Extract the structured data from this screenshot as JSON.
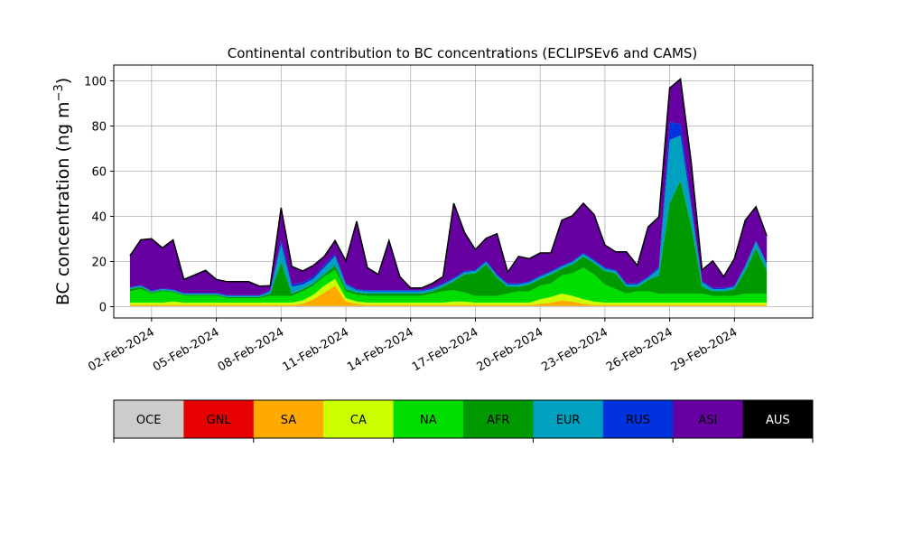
{
  "chart_data": {
    "type": "area",
    "stacked": true,
    "title": "Continental contribution to BC concentrations (ECLIPSEv6 and CAMS)",
    "xlabel": "",
    "ylabel": "BC concentration (ng m⁻³)",
    "ylim": [
      -5,
      107
    ],
    "yticks": [
      0,
      20,
      40,
      60,
      80,
      100
    ],
    "xlim": [
      "2024-01-31T06:00",
      "2024-03-03T15:00"
    ],
    "xticks": [
      "2024-02-02",
      "2024-02-05",
      "2024-02-08",
      "2024-02-11",
      "2024-02-14",
      "2024-02-17",
      "2024-02-20",
      "2024-02-23",
      "2024-02-26",
      "2024-02-29"
    ],
    "xtick_labels": [
      "02-Feb-2024",
      "05-Feb-2024",
      "08-Feb-2024",
      "11-Feb-2024",
      "14-Feb-2024",
      "17-Feb-2024",
      "20-Feb-2024",
      "23-Feb-2024",
      "26-Feb-2024",
      "29-Feb-2024"
    ],
    "grid": true,
    "legend_position": "below",
    "x": [
      "2024-02-01T00:00",
      "2024-02-01T12:00",
      "2024-02-02T00:00",
      "2024-02-02T12:00",
      "2024-02-03T00:00",
      "2024-02-03T12:00",
      "2024-02-04T00:00",
      "2024-02-04T12:00",
      "2024-02-05T00:00",
      "2024-02-05T12:00",
      "2024-02-06T00:00",
      "2024-02-06T12:00",
      "2024-02-07T00:00",
      "2024-02-07T12:00",
      "2024-02-08T00:00",
      "2024-02-08T12:00",
      "2024-02-09T00:00",
      "2024-02-09T12:00",
      "2024-02-10T00:00",
      "2024-02-10T12:00",
      "2024-02-11T00:00",
      "2024-02-11T12:00",
      "2024-02-12T00:00",
      "2024-02-12T12:00",
      "2024-02-13T00:00",
      "2024-02-13T12:00",
      "2024-02-14T00:00",
      "2024-02-14T12:00",
      "2024-02-15T00:00",
      "2024-02-15T12:00",
      "2024-02-16T00:00",
      "2024-02-16T12:00",
      "2024-02-17T00:00",
      "2024-02-17T12:00",
      "2024-02-18T00:00",
      "2024-02-18T12:00",
      "2024-02-19T00:00",
      "2024-02-19T12:00",
      "2024-02-20T00:00",
      "2024-02-20T12:00",
      "2024-02-21T00:00",
      "2024-02-21T12:00",
      "2024-02-22T00:00",
      "2024-02-22T12:00",
      "2024-02-23T00:00",
      "2024-02-23T12:00",
      "2024-02-24T00:00",
      "2024-02-24T12:00",
      "2024-02-25T00:00",
      "2024-02-25T12:00",
      "2024-02-26T00:00",
      "2024-02-26T12:00",
      "2024-02-27T00:00",
      "2024-02-27T12:00",
      "2024-02-28T00:00",
      "2024-02-28T12:00",
      "2024-02-29T00:00",
      "2024-02-29T12:00",
      "2024-03-01T00:00",
      "2024-03-01T12:00"
    ],
    "series": [
      {
        "name": "OCE",
        "color": "#cccccc",
        "values": [
          0.3,
          0.3,
          0.3,
          0.3,
          0.3,
          0.3,
          0.3,
          0.3,
          0.3,
          0.3,
          0.3,
          0.3,
          0.3,
          0.3,
          0.3,
          0.3,
          0.3,
          0.3,
          0.3,
          0.3,
          0.3,
          0.3,
          0.3,
          0.3,
          0.3,
          0.3,
          0.3,
          0.3,
          0.3,
          0.3,
          0.3,
          0.3,
          0.3,
          0.3,
          0.3,
          0.3,
          0.3,
          0.3,
          0.3,
          0.3,
          0.3,
          0.3,
          0.3,
          0.3,
          0.3,
          0.3,
          0.3,
          0.3,
          0.3,
          0.3,
          0.3,
          0.3,
          0.3,
          0.3,
          0.3,
          0.3,
          0.3,
          0.3,
          0.3,
          0.3
        ]
      },
      {
        "name": "GNL",
        "color": "#e60000",
        "values": [
          0,
          0,
          0,
          0,
          0,
          0,
          0,
          0,
          0,
          0,
          0,
          0,
          0,
          0,
          0,
          0,
          0,
          0,
          0,
          0,
          0,
          0,
          0,
          0,
          0,
          0,
          0,
          0,
          0,
          0,
          0,
          0,
          0,
          0,
          0,
          0,
          0,
          0,
          0,
          0,
          0,
          0,
          0,
          0,
          0,
          0,
          0,
          0,
          0,
          0,
          0,
          0,
          0,
          0,
          0,
          0,
          0,
          0,
          0,
          0
        ]
      },
      {
        "name": "SA",
        "color": "#ffaa00",
        "values": [
          0.5,
          0.5,
          0.5,
          0.5,
          0.5,
          0.5,
          0.5,
          0.5,
          0.5,
          0.5,
          0.5,
          0.5,
          0.5,
          0.5,
          0.5,
          0.5,
          1,
          3,
          6,
          9,
          2,
          1,
          0.5,
          0.5,
          0.5,
          0.5,
          0.5,
          0.5,
          0.5,
          0.5,
          0.5,
          0.5,
          0.5,
          0.5,
          0.5,
          0.5,
          0.5,
          0.5,
          1,
          1.5,
          2.5,
          2,
          1,
          0.5,
          0.5,
          0.5,
          0.5,
          0.5,
          0.5,
          0.5,
          0.5,
          0.5,
          0.5,
          0.5,
          0.5,
          0.5,
          0.5,
          0.5,
          0.5,
          0.5
        ]
      },
      {
        "name": "CA",
        "color": "#ccff00",
        "values": [
          1,
          1,
          1,
          1,
          1.5,
          1,
          1,
          1,
          1,
          1,
          1,
          1,
          1,
          1,
          1,
          1,
          1.5,
          2,
          3,
          3,
          1.5,
          1,
          1,
          1,
          1,
          1,
          1,
          1,
          1,
          1,
          1.5,
          1.5,
          1,
          1,
          1,
          1,
          1,
          1,
          2,
          2.5,
          3,
          2.5,
          2,
          1.5,
          1,
          1,
          1,
          1,
          1,
          1,
          1,
          1,
          1,
          1,
          1,
          1,
          1,
          1,
          1,
          1
        ]
      },
      {
        "name": "NA",
        "color": "#00dd00",
        "values": [
          5,
          6,
          4,
          5,
          4,
          3,
          3,
          3,
          3,
          2,
          2,
          2,
          2,
          3,
          3,
          3,
          4,
          4,
          4,
          4,
          3,
          3,
          3,
          3,
          3,
          3,
          3,
          3,
          4,
          5,
          5,
          4,
          3,
          3,
          3,
          4,
          5,
          5,
          6,
          6,
          8,
          10,
          14,
          12,
          8,
          6,
          4,
          5,
          5,
          4,
          4,
          4,
          4,
          4,
          3,
          3,
          3,
          4,
          4,
          4
        ]
      },
      {
        "name": "AFR",
        "color": "#009900",
        "values": [
          1,
          1,
          0.5,
          0.5,
          0.5,
          0.5,
          0.5,
          0.5,
          0.5,
          0.5,
          0.5,
          0.5,
          0.5,
          1,
          15,
          1,
          1,
          1,
          1,
          2,
          1,
          1,
          1,
          1,
          1,
          1,
          1,
          1,
          1,
          2,
          4,
          8,
          10,
          14,
          8,
          3,
          2,
          3,
          3,
          4,
          3,
          4,
          5,
          5,
          6,
          7,
          3,
          2,
          5,
          8,
          40,
          50,
          30,
          3,
          2,
          2,
          3,
          10,
          20,
          10
        ]
      },
      {
        "name": "EUR",
        "color": "#00a0c0",
        "values": [
          0.5,
          0.5,
          0.5,
          0.5,
          0.5,
          0.5,
          0.5,
          0.5,
          0.5,
          0.5,
          0.5,
          0.5,
          0.5,
          1,
          8,
          3,
          2,
          2,
          3,
          4,
          2,
          1,
          1,
          1,
          1,
          1,
          1,
          1,
          1,
          1,
          1,
          1,
          1,
          1,
          1,
          1,
          1,
          1,
          1,
          1,
          1,
          1,
          1,
          1,
          1,
          1,
          1,
          1,
          1,
          3,
          28,
          20,
          8,
          2,
          1,
          1,
          1,
          2,
          3,
          3
        ]
      },
      {
        "name": "RUS",
        "color": "#0033dd",
        "values": [
          0.3,
          0.3,
          0.3,
          0.3,
          0.3,
          0.3,
          0.3,
          0.3,
          0.3,
          0.3,
          0.3,
          0.3,
          0.3,
          0.5,
          2,
          1,
          1,
          1,
          1,
          1,
          0.5,
          0.5,
          0.5,
          0.5,
          0.5,
          0.5,
          0.5,
          0.5,
          0.5,
          0.5,
          0.5,
          0.5,
          0.5,
          0.5,
          0.5,
          0.5,
          0.5,
          0.5,
          0.5,
          0.5,
          0.5,
          0.5,
          0.5,
          0.5,
          0.5,
          0.5,
          0.5,
          0.5,
          0.5,
          1,
          8,
          5,
          2,
          0.5,
          0.5,
          0.5,
          0.5,
          0.5,
          0.5,
          0.5
        ]
      },
      {
        "name": "ASI",
        "color": "#6600a0",
        "values": [
          14,
          20,
          23,
          18,
          22,
          6,
          8,
          10,
          6,
          6,
          6,
          6,
          4,
          2,
          14,
          8,
          5,
          5,
          4,
          6,
          10,
          30,
          10,
          7,
          22,
          6,
          1,
          1,
          2,
          3,
          33,
          17,
          9,
          10,
          18,
          5,
          12,
          10,
          10,
          8,
          20,
          20,
          22,
          20,
          10,
          8,
          14,
          8,
          22,
          22,
          15,
          20,
          18,
          5,
          12,
          5,
          12,
          20,
          15,
          12
        ]
      },
      {
        "name": "AUS",
        "color": "#000000",
        "values": [
          0,
          0,
          0,
          0,
          0,
          0,
          0,
          0,
          0,
          0,
          0,
          0,
          0,
          0,
          0,
          0,
          0,
          0,
          0,
          0,
          0,
          0,
          0,
          0,
          0,
          0,
          0,
          0,
          0,
          0,
          0,
          0,
          0,
          0,
          0,
          0,
          0,
          0,
          0,
          0,
          0,
          0,
          0,
          0,
          0,
          0,
          0,
          0,
          0,
          0,
          0,
          0,
          0,
          0,
          0,
          0,
          0,
          0,
          0,
          0
        ]
      }
    ]
  }
}
